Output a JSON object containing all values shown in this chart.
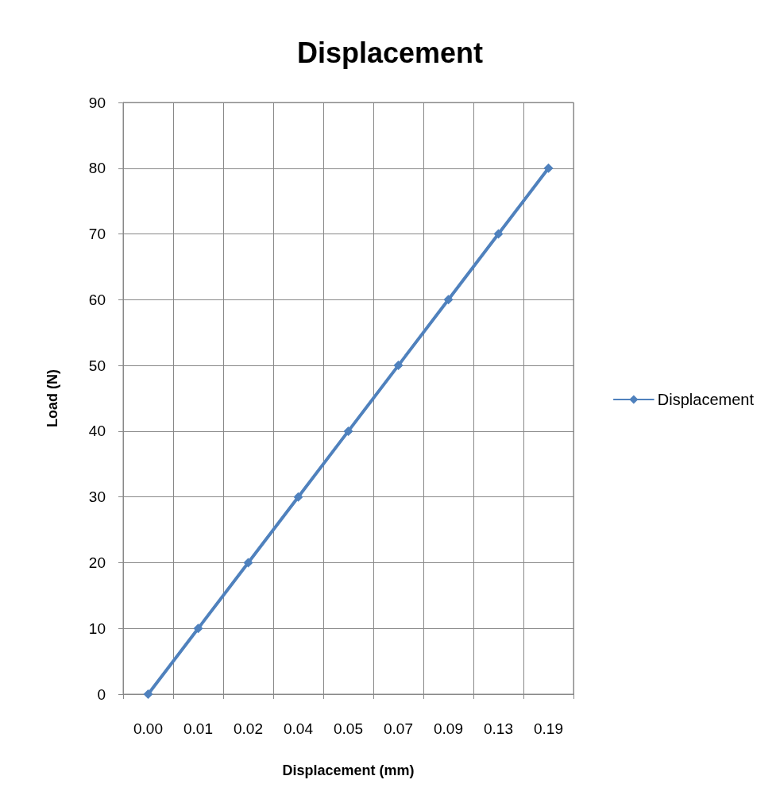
{
  "chart_data": {
    "type": "line",
    "title": "Displacement",
    "xlabel": "Displacement (mm)",
    "ylabel": "Load (N)",
    "categories": [
      "0.00",
      "0.01",
      "0.02",
      "0.04",
      "0.05",
      "0.07",
      "0.09",
      "0.13",
      "0.19"
    ],
    "series": [
      {
        "name": "Displacement",
        "color": "#4f81bd",
        "values": [
          0,
          10,
          20,
          30,
          40,
          50,
          60,
          70,
          80
        ]
      }
    ],
    "ylim": [
      0,
      90
    ],
    "yticks": [
      0,
      10,
      20,
      30,
      40,
      50,
      60,
      70,
      80,
      90
    ],
    "grid": true,
    "legend": "right",
    "marker": "diamond",
    "line_style": "solid"
  }
}
